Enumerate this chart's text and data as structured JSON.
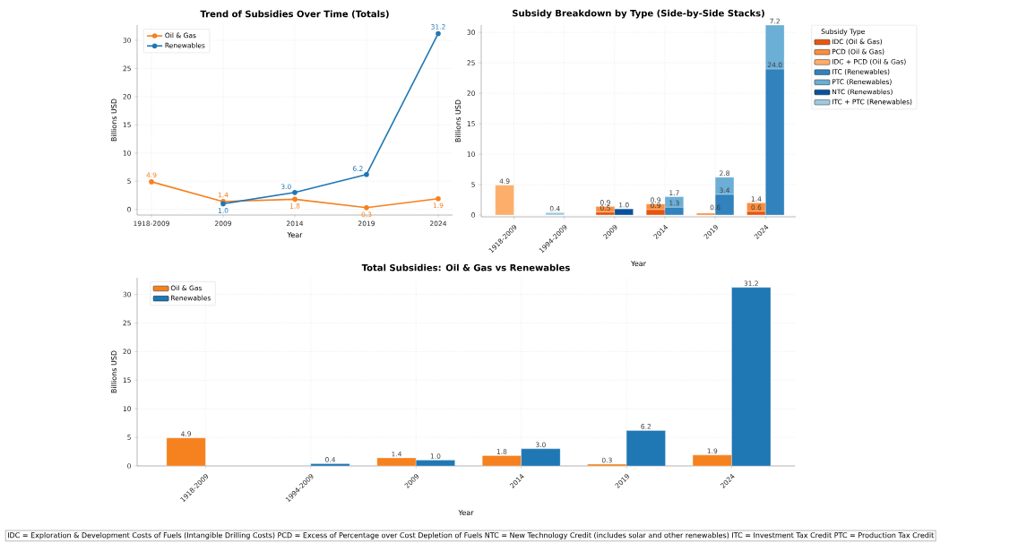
{
  "chart_data": [
    {
      "type": "line",
      "title": "Trend of Subsidies Over Time (Totals)",
      "xlabel": "Year",
      "ylabel": "Billions USD",
      "categories": [
        "1918-2009",
        "2009",
        "2014",
        "2019",
        "2024"
      ],
      "series": [
        {
          "name": "Oil & Gas",
          "color": "#f5811f",
          "values": [
            4.9,
            1.4,
            1.8,
            0.3,
            1.9
          ],
          "value_labels": [
            "4.9",
            "1.4",
            "1.8",
            "0.3",
            "1.9"
          ]
        },
        {
          "name": "Renewables",
          "color": "#1f77b4",
          "values": [
            null,
            1.0,
            3.0,
            6.2,
            31.2
          ],
          "value_labels": [
            null,
            "1.0",
            "3.0",
            "6.2",
            "31.2"
          ]
        }
      ],
      "ylim": [
        -1,
        32.7
      ],
      "yticks": [
        0,
        5,
        10,
        15,
        20,
        25,
        30
      ],
      "grid": true,
      "legend": "top left",
      "marker": "circle"
    },
    {
      "type": "bar",
      "title": "Subsidy Breakdown by Type (Side-by-Side Stacks)",
      "xlabel": "Year",
      "ylabel": "Billions USD",
      "legend_title": "Subsidy Type",
      "categories": [
        "1918-2009",
        "1994-2009",
        "2009",
        "2014",
        "2019",
        "2024"
      ],
      "series": [
        {
          "name": "IDC (Oil & Gas)",
          "color": "#e6550d",
          "values": [
            null,
            null,
            0.5,
            0.9,
            null,
            0.6
          ],
          "base": [
            null,
            null,
            0,
            0,
            null,
            0
          ],
          "value_labels": [
            null,
            null,
            "0.5",
            "0.9",
            null,
            "0.6"
          ]
        },
        {
          "name": "PCD (Oil & Gas)",
          "color": "#fd8d3c",
          "values": [
            null,
            null,
            0.9,
            0.9,
            0.3,
            1.4
          ],
          "base": [
            null,
            null,
            0.5,
            0.9,
            0,
            0.6
          ],
          "value_labels": [
            null,
            null,
            "0.9",
            "0.9",
            null,
            "1.4"
          ]
        },
        {
          "name": "IDC + PCD (Oil & Gas)",
          "color": "#fdae6b",
          "values": [
            4.9,
            null,
            null,
            null,
            null,
            null
          ],
          "base": [
            0,
            null,
            null,
            null,
            null,
            null
          ],
          "value_labels": [
            "4.9",
            null,
            null,
            null,
            null,
            null
          ]
        },
        {
          "name": "ITC (Renewables)",
          "color": "#3182bd",
          "values": [
            null,
            null,
            null,
            1.3,
            3.4,
            24.0
          ],
          "base": [
            null,
            null,
            null,
            0,
            0,
            0
          ],
          "value_labels": [
            null,
            null,
            null,
            "1.3",
            "3.4",
            "24.0"
          ]
        },
        {
          "name": "PTC (Renewables)",
          "color": "#6baed6",
          "values": [
            null,
            null,
            null,
            1.7,
            2.8,
            7.2
          ],
          "base": [
            null,
            null,
            null,
            1.3,
            3.4,
            24.0
          ],
          "value_labels": [
            null,
            null,
            null,
            "1.7",
            "2.8",
            "7.2"
          ]
        },
        {
          "name": "NTC (Renewables)",
          "color": "#08519c",
          "values": [
            null,
            null,
            1.0,
            null,
            null,
            null
          ],
          "base": [
            null,
            null,
            0,
            null,
            null,
            null
          ],
          "value_labels": [
            null,
            null,
            "1.0",
            null,
            null,
            null
          ]
        },
        {
          "name": "ITC + PTC (Renewables)",
          "color": "#9ecae1",
          "values": [
            null,
            0.4,
            null,
            null,
            null,
            null
          ],
          "base": [
            null,
            0,
            null,
            null,
            null,
            null
          ],
          "value_labels": [
            null,
            "0.4",
            null,
            null,
            null,
            null
          ]
        }
      ],
      "annotations": [
        {
          "text": "0.6",
          "x": "2019",
          "y": 0.6
        }
      ],
      "ylim": [
        -0.3,
        31.2
      ],
      "yticks": [
        0,
        5,
        10,
        15,
        20,
        25,
        30
      ],
      "grid": true,
      "legend": "right"
    },
    {
      "type": "bar",
      "title": "Total Subsidies: Oil & Gas vs Renewables",
      "xlabel": "Year",
      "ylabel": "Billions USD",
      "categories": [
        "1918-2009",
        "1994-2009",
        "2009",
        "2014",
        "2019",
        "2024"
      ],
      "series": [
        {
          "name": "Oil & Gas",
          "color": "#f5811f",
          "values": [
            4.9,
            null,
            1.4,
            1.8,
            0.3,
            1.9
          ],
          "value_labels": [
            "4.9",
            null,
            "1.4",
            "1.8",
            "0.3",
            "1.9"
          ]
        },
        {
          "name": "Renewables",
          "color": "#1f77b4",
          "values": [
            null,
            0.4,
            1.0,
            3.0,
            6.2,
            31.2
          ],
          "value_labels": [
            null,
            "0.4",
            "1.0",
            "3.0",
            "6.2",
            "31.2"
          ]
        }
      ],
      "ylim": [
        0,
        32.9
      ],
      "yticks": [
        0,
        5,
        10,
        15,
        20,
        25,
        30
      ],
      "grid": true,
      "legend": "top left",
      "annotations": [
        "IDC = Exploration & Development Costs of Fuels (Intangible Drilling Costs)    PCD = Excess of Percentage over Cost Depletion of Fuels    NTC = New Technology Credit (includes solar and other renewables)    ITC = Investment Tax Credit    PTC = Production Tax Credit"
      ]
    }
  ]
}
